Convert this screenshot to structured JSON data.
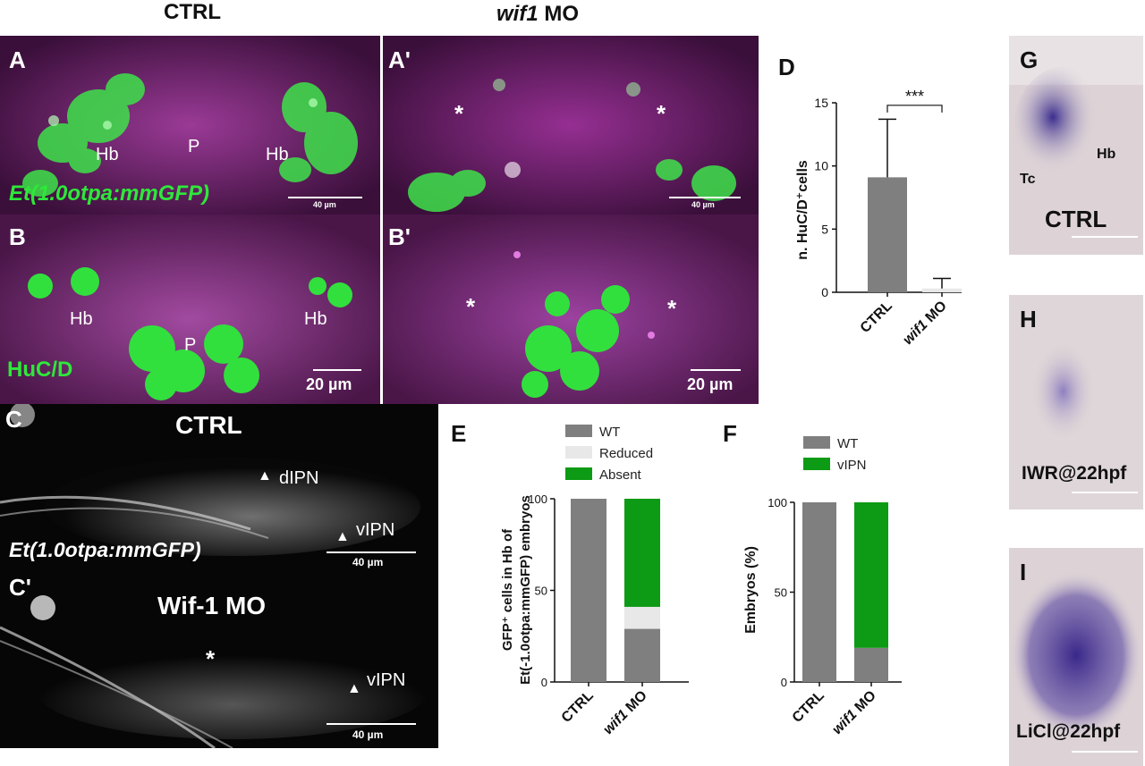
{
  "headers": {
    "ctrl": "CTRL",
    "mo_italic": "wif1",
    "mo_rest": " MO"
  },
  "panel_A": {
    "label": "A",
    "hb_left": "Hb",
    "p": "P",
    "hb_right": "Hb",
    "transgene": "Et(1.0otpa:mmGFP)",
    "scale": "40 µm"
  },
  "panel_A2": {
    "label": "A'",
    "star": "*",
    "scale": "40 µm"
  },
  "panel_B": {
    "label": "B",
    "hb_left": "Hb",
    "p": "P",
    "hb_right": "Hb",
    "marker": "HuC/D",
    "scale": "20 µm"
  },
  "panel_B2": {
    "label": "B'",
    "star": "*",
    "scale": "20 µm"
  },
  "panel_C": {
    "label": "C",
    "title": "CTRL",
    "dipn": "dIPN",
    "vipn": "vIPN",
    "transgene": "Et(1.0otpa:mmGFP)",
    "scale": "40 µm"
  },
  "panel_C2": {
    "label": "C'",
    "title": "Wif-1 MO",
    "star": "*",
    "vipn": "vIPN",
    "scale": "40 µm"
  },
  "panel_D": {
    "label": "D",
    "significance": "***"
  },
  "panel_E": {
    "label": "E",
    "legend": [
      "WT",
      "Reduced",
      "Absent"
    ]
  },
  "panel_F": {
    "label": "F",
    "legend": [
      "WT",
      "vIPN"
    ]
  },
  "panel_G": {
    "label": "G",
    "tc": "Tc",
    "hb": "Hb",
    "cond": "CTRL"
  },
  "panel_H": {
    "label": "H",
    "cond": "IWR@22hpf"
  },
  "panel_I": {
    "label": "I",
    "cond": "LiCl@22hpf"
  },
  "colors": {
    "magenta": "#7a2474",
    "gfp": "#2ee83a",
    "bar_gray": "#7f7f7f",
    "bar_light": "#e8e8e8",
    "bar_green": "#0d9a14",
    "ish_bg": "#ddd3d6",
    "ish_stain": "#3a2a8a"
  },
  "chart_data": [
    {
      "type": "bar",
      "panel": "D",
      "categories": [
        "CTRL",
        "wif1 MO"
      ],
      "values": [
        9.1,
        0.3
      ],
      "errors": [
        4.6,
        0.8
      ],
      "title": "",
      "xlabel": "",
      "ylabel": "n. HuC/D⁺cells",
      "ylim": [
        0,
        15
      ],
      "yticks": [
        0,
        5,
        10,
        15
      ],
      "annotation": "***"
    },
    {
      "type": "bar",
      "stacked": true,
      "panel": "E",
      "categories": [
        "CTRL",
        "wif1 MO"
      ],
      "series": [
        {
          "name": "WT",
          "values": [
            100,
            29
          ],
          "color": "#7f7f7f"
        },
        {
          "name": "Reduced",
          "values": [
            0,
            12
          ],
          "color": "#e8e8e8"
        },
        {
          "name": "Absent",
          "values": [
            0,
            59
          ],
          "color": "#0d9a14"
        }
      ],
      "ylabel_line1": "GFP⁺ cells in Hb of",
      "ylabel_line2": "Et(-1.0otpa:mmGFP) embryos",
      "ylim": [
        0,
        100
      ],
      "yticks": [
        0,
        50,
        100
      ],
      "legend": "top"
    },
    {
      "type": "bar",
      "stacked": true,
      "panel": "F",
      "categories": [
        "CTRL",
        "wif1 MO"
      ],
      "series": [
        {
          "name": "WT",
          "values": [
            100,
            19
          ],
          "color": "#7f7f7f"
        },
        {
          "name": "vIPN",
          "values": [
            0,
            81
          ],
          "color": "#0d9a14"
        }
      ],
      "ylabel": "Embryos (%)",
      "ylim": [
        0,
        100
      ],
      "yticks": [
        0,
        50,
        100
      ],
      "legend": "top"
    }
  ]
}
